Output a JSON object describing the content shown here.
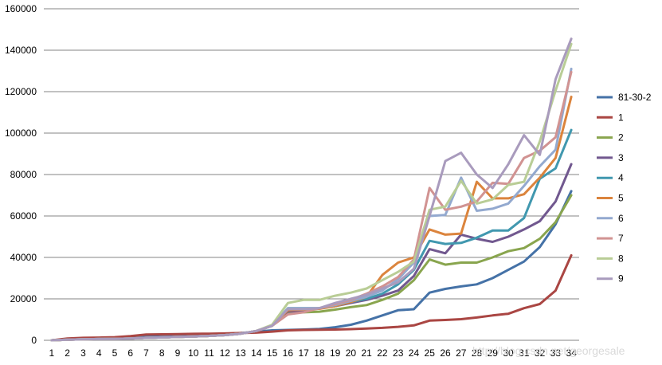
{
  "watermark": "http://blog.csdn.net/georgesale",
  "chart_data": {
    "type": "line",
    "title": "",
    "xlabel": "",
    "ylabel": "",
    "x": [
      1,
      2,
      3,
      4,
      5,
      6,
      7,
      8,
      9,
      10,
      11,
      12,
      13,
      14,
      15,
      16,
      17,
      18,
      19,
      20,
      21,
      22,
      23,
      24,
      25,
      26,
      27,
      28,
      29,
      30,
      31,
      32,
      33,
      34
    ],
    "ylim": [
      0,
      160000
    ],
    "yticks": [
      0,
      20000,
      40000,
      60000,
      80000,
      100000,
      120000,
      140000,
      160000
    ],
    "grid": "horizontal",
    "legend": "right",
    "series": [
      {
        "name": "81-30-2",
        "color": "#4572a7",
        "values": [
          0,
          500,
          900,
          1000,
          1200,
          1500,
          2000,
          2200,
          2500,
          2700,
          3000,
          3200,
          3500,
          4200,
          4800,
          5000,
          5200,
          5500,
          6300,
          7500,
          9500,
          12000,
          14500,
          15000,
          23000,
          24800,
          26000,
          27000,
          30000,
          34000,
          38000,
          45000,
          56000,
          72000
        ]
      },
      {
        "name": "1",
        "color": "#aa4643",
        "values": [
          0,
          900,
          1200,
          1300,
          1500,
          2000,
          2800,
          2900,
          3000,
          3100,
          3200,
          3300,
          3500,
          3700,
          4200,
          4800,
          5000,
          5100,
          5200,
          5400,
          5700,
          6000,
          6500,
          7200,
          9500,
          9800,
          10200,
          11000,
          12000,
          12800,
          15500,
          17500,
          24000,
          41000
        ]
      },
      {
        "name": "2",
        "color": "#89a54e",
        "values": [
          0,
          300,
          500,
          600,
          700,
          900,
          1200,
          1400,
          1600,
          1800,
          2100,
          2500,
          3200,
          4500,
          7000,
          13500,
          13500,
          13800,
          14800,
          16000,
          17000,
          19500,
          22500,
          29000,
          39000,
          36500,
          37500,
          37500,
          40000,
          43000,
          44500,
          49000,
          57000,
          70000
        ]
      },
      {
        "name": "3",
        "color": "#71588f",
        "values": [
          0,
          300,
          500,
          600,
          700,
          900,
          1200,
          1400,
          1600,
          1800,
          2100,
          2500,
          3200,
          4500,
          7000,
          14000,
          14000,
          15500,
          16500,
          18000,
          19500,
          21500,
          24000,
          31000,
          44000,
          42000,
          51000,
          49000,
          47500,
          50000,
          53500,
          57500,
          67000,
          85000
        ]
      },
      {
        "name": "4",
        "color": "#4198af",
        "values": [
          0,
          300,
          500,
          600,
          700,
          900,
          1200,
          1400,
          1600,
          1800,
          2100,
          2500,
          3200,
          4500,
          7000,
          15500,
          15500,
          15500,
          16500,
          18500,
          20000,
          22500,
          27000,
          34000,
          48000,
          46500,
          47000,
          49500,
          53000,
          53000,
          59000,
          78000,
          83000,
          101500
        ]
      },
      {
        "name": "5",
        "color": "#db843d",
        "values": [
          0,
          300,
          500,
          600,
          700,
          900,
          1200,
          1400,
          1600,
          1800,
          2100,
          2500,
          3200,
          4500,
          7000,
          14500,
          14800,
          15200,
          16500,
          18500,
          21000,
          31500,
          37500,
          40000,
          53500,
          51000,
          51500,
          76500,
          68500,
          68500,
          70500,
          78500,
          88000,
          117500
        ]
      },
      {
        "name": "6",
        "color": "#93a9cf",
        "values": [
          0,
          300,
          500,
          600,
          700,
          900,
          1200,
          1400,
          1600,
          1800,
          2100,
          2500,
          3200,
          4500,
          7000,
          15500,
          15500,
          15500,
          17000,
          19000,
          21000,
          24000,
          29500,
          37500,
          60000,
          60500,
          78500,
          62500,
          63500,
          66000,
          74500,
          84000,
          92000,
          131000
        ]
      },
      {
        "name": "7",
        "color": "#d19392",
        "values": [
          0,
          300,
          500,
          600,
          700,
          900,
          1200,
          1400,
          1600,
          1800,
          2100,
          2500,
          3200,
          4500,
          7000,
          12500,
          13500,
          15500,
          17500,
          19500,
          22500,
          26000,
          30500,
          39000,
          73500,
          63000,
          64500,
          67000,
          76000,
          75500,
          88000,
          91500,
          98000,
          129500
        ]
      },
      {
        "name": "8",
        "color": "#b9cd96",
        "values": [
          0,
          300,
          500,
          600,
          700,
          900,
          1200,
          1400,
          1600,
          1800,
          2100,
          2500,
          3200,
          4500,
          7500,
          18000,
          19500,
          19500,
          21500,
          23000,
          25000,
          29000,
          33000,
          38000,
          63000,
          64500,
          77000,
          66000,
          68000,
          75000,
          76500,
          96000,
          120500,
          143000
        ]
      },
      {
        "name": "9",
        "color": "#a99bbd",
        "values": [
          0,
          300,
          500,
          600,
          700,
          900,
          1200,
          1400,
          1600,
          1800,
          2100,
          2500,
          3200,
          4500,
          7000,
          15000,
          15000,
          15500,
          18000,
          20000,
          22000,
          25000,
          28000,
          34500,
          60000,
          86500,
          90500,
          80000,
          73500,
          85000,
          99000,
          89500,
          126000,
          145500
        ]
      }
    ]
  }
}
